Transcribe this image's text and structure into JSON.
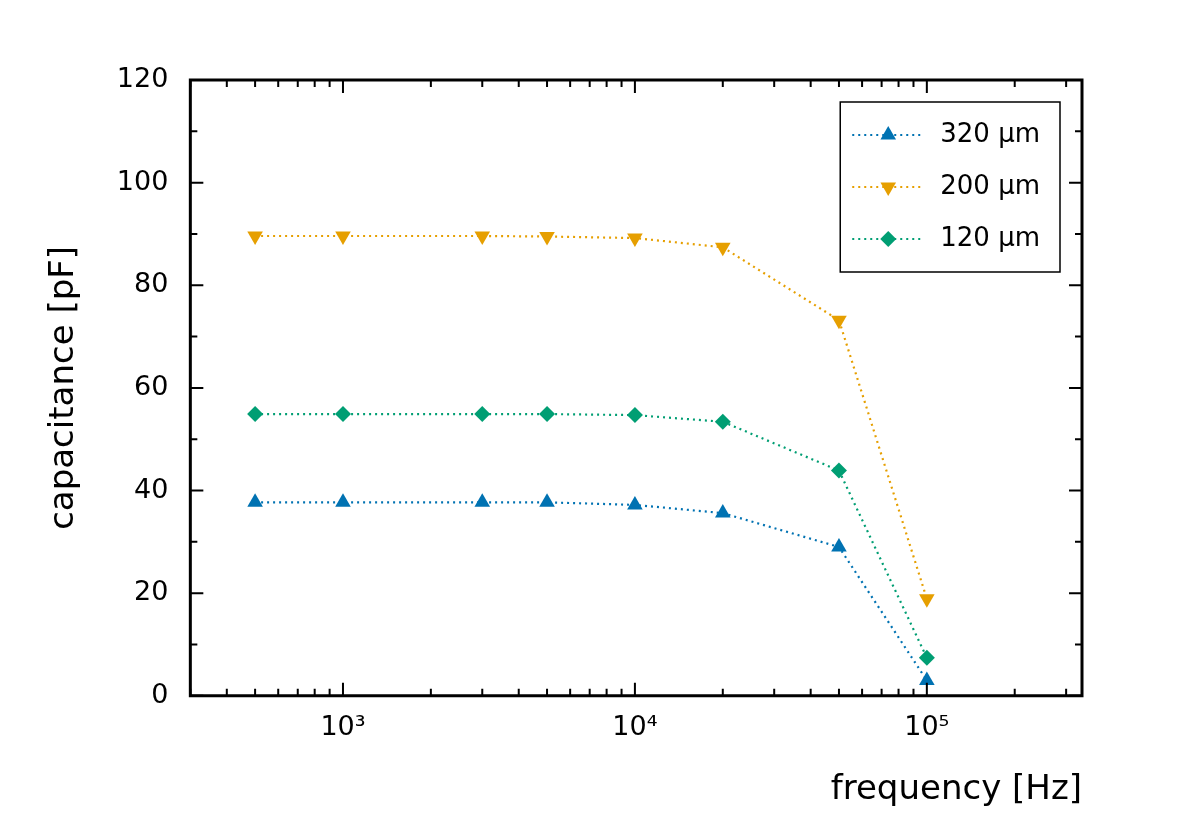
{
  "chart_data": {
    "type": "line",
    "xlabel": "frequency [Hz]",
    "ylabel": "capacitance [pF]",
    "x": [
      500,
      1000,
      3000,
      5000,
      10000,
      20000,
      50000,
      100000
    ],
    "series": [
      {
        "name": "320 µm",
        "color": "#0072b2",
        "marker": "triangle",
        "values": [
          37.7,
          37.7,
          37.7,
          37.7,
          37.2,
          35.6,
          29.0,
          3.0
        ]
      },
      {
        "name": "200 µm",
        "color": "#e69f00",
        "marker": "triangle_down",
        "values": [
          89.6,
          89.6,
          89.6,
          89.5,
          89.2,
          87.4,
          73.2,
          18.9
        ]
      },
      {
        "name": "120 µm",
        "color": "#009e73",
        "marker": "diamond",
        "values": [
          54.9,
          54.9,
          54.9,
          54.9,
          54.7,
          53.4,
          43.9,
          7.4
        ]
      }
    ],
    "log": "x",
    "xlim": [
      300,
      340000
    ],
    "xticks": [
      {
        "value": 1000,
        "label": "10³"
      },
      {
        "value": 10000,
        "label": "10⁴"
      },
      {
        "value": 100000,
        "label": "10⁵"
      }
    ],
    "ylim": [
      0,
      120
    ],
    "yticks": [
      0,
      20,
      40,
      60,
      80,
      100,
      120
    ],
    "grid": false,
    "legend": "top right",
    "line_style": "dotted"
  }
}
